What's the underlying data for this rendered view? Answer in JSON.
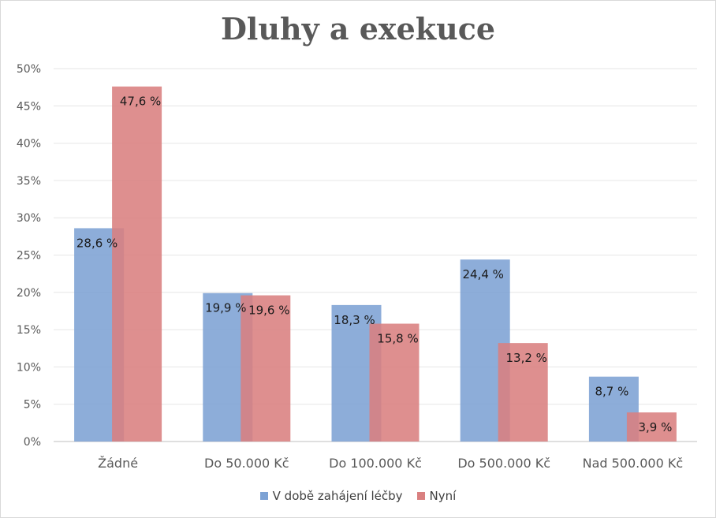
{
  "chart_data": {
    "type": "bar",
    "title": "Dluhy a exekuce",
    "categories": [
      "Žádné",
      "Do 50.000 Kč",
      "Do 100.000 Kč",
      "Do 500.000 Kč",
      "Nad 500.000 Kč"
    ],
    "series": [
      {
        "name": "V době zahájení léčby",
        "values": [
          28.6,
          19.9,
          18.3,
          24.4,
          8.7
        ],
        "labels": [
          "28,6 %",
          "19,9 %",
          "18,3 %",
          "24,4 %",
          "8,7 %"
        ],
        "color": "#7da2d4"
      },
      {
        "name": "Nyní",
        "values": [
          47.6,
          19.6,
          15.8,
          13.2,
          3.9
        ],
        "labels": [
          "47,6 %",
          "19,6 %",
          "15,8 %",
          "13,2 %",
          "3,9 %"
        ],
        "color": "#d98080"
      }
    ],
    "y_ticks": [
      "0%",
      "5%",
      "10%",
      "15%",
      "20%",
      "25%",
      "30%",
      "35%",
      "40%",
      "45%",
      "50%"
    ],
    "ylim": [
      0,
      50
    ],
    "grid": true,
    "legend_position": "bottom"
  }
}
